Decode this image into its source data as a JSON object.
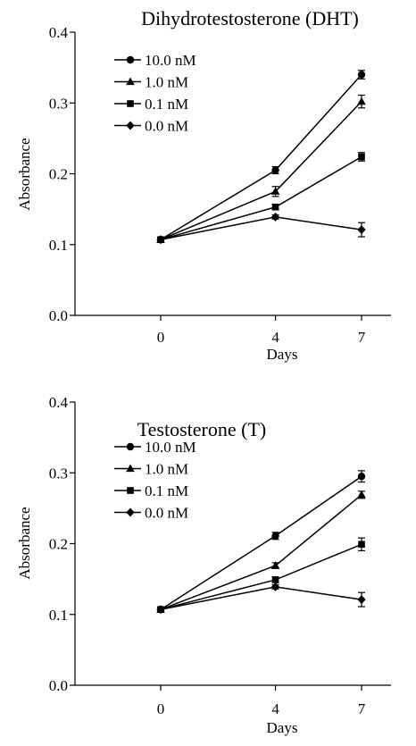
{
  "chart_data": [
    {
      "type": "line",
      "title": "Dihydrotestosterone (DHT)",
      "xlabel": "Days",
      "ylabel": "Absorbance",
      "x": [
        0,
        4,
        7
      ],
      "x_ticks": [
        "0",
        "4",
        "7"
      ],
      "y_ticks": [
        "0.0",
        "0.1",
        "0.2",
        "0.3",
        "0.4"
      ],
      "ylim": [
        0,
        0.4
      ],
      "grid": false,
      "legend_position": "top-left",
      "series": [
        {
          "name": "10.0 nM",
          "marker": "circle",
          "values": [
            0.107,
            0.205,
            0.34
          ],
          "errors": [
            0.003,
            0.005,
            0.006
          ]
        },
        {
          "name": "1.0 nM",
          "marker": "triangle",
          "values": [
            0.107,
            0.175,
            0.302
          ],
          "errors": [
            0.003,
            0.007,
            0.009
          ]
        },
        {
          "name": "0.1 nM",
          "marker": "square",
          "values": [
            0.107,
            0.153,
            0.224
          ],
          "errors": [
            0.003,
            0.004,
            0.006
          ]
        },
        {
          "name": "0.0 nM",
          "marker": "diamond",
          "values": [
            0.107,
            0.139,
            0.121
          ],
          "errors": [
            0.003,
            0.003,
            0.01
          ]
        }
      ]
    },
    {
      "type": "line",
      "title": "Testosterone (T)",
      "xlabel": "Days",
      "ylabel": "Absorbance",
      "x": [
        0,
        4,
        7
      ],
      "x_ticks": [
        "0",
        "4",
        "7"
      ],
      "y_ticks": [
        "0.0",
        "0.1",
        "0.2",
        "0.3",
        "0.4"
      ],
      "ylim": [
        0,
        0.4
      ],
      "grid": false,
      "legend_position": "top-left",
      "series": [
        {
          "name": "10.0 nM",
          "marker": "circle",
          "values": [
            0.107,
            0.211,
            0.295
          ],
          "errors": [
            0.003,
            0.005,
            0.008
          ]
        },
        {
          "name": "1.0 nM",
          "marker": "triangle",
          "values": [
            0.107,
            0.169,
            0.269
          ],
          "errors": [
            0.003,
            0.004,
            0.005
          ]
        },
        {
          "name": "0.1 nM",
          "marker": "square",
          "values": [
            0.107,
            0.149,
            0.199
          ],
          "errors": [
            0.003,
            0.004,
            0.009
          ]
        },
        {
          "name": "0.0 nM",
          "marker": "diamond",
          "values": [
            0.107,
            0.139,
            0.121
          ],
          "errors": [
            0.003,
            0.003,
            0.01
          ]
        }
      ]
    }
  ]
}
